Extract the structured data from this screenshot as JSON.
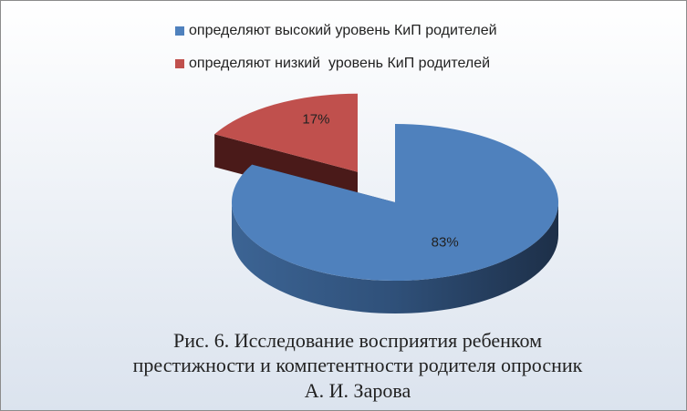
{
  "chart_data": {
    "type": "pie3d",
    "title": [
      "Рис. 6. Исследование восприятия ребенком",
      "престижности и компетентности родителя опросник",
      "А. И. Зарова"
    ],
    "categories": [
      "определяют высокий уровень КиП родителей",
      "определяют низкий  уровень КиП родителей"
    ],
    "values": [
      83,
      17
    ],
    "value_labels": [
      "83%",
      "17%"
    ],
    "colors": [
      "#4f81bd",
      "#c0504d"
    ]
  }
}
